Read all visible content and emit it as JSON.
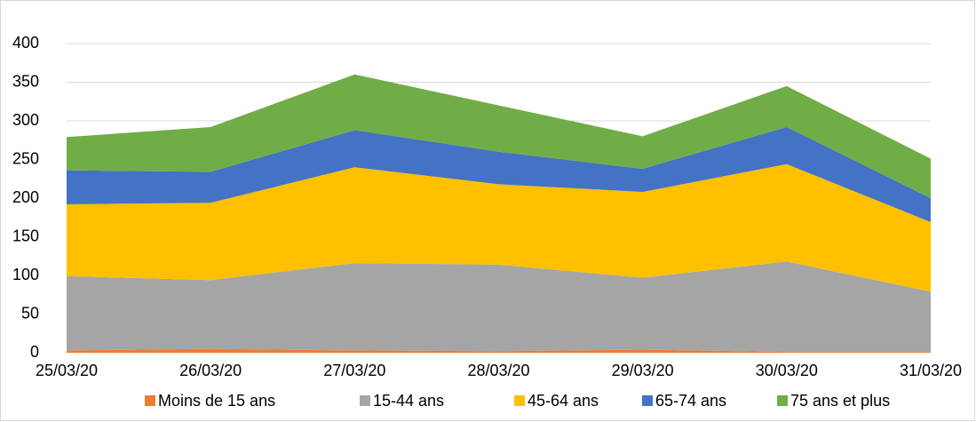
{
  "chart_data": {
    "type": "area",
    "stacked": true,
    "categories": [
      "25/03/20",
      "26/03/20",
      "27/03/20",
      "28/03/20",
      "29/03/20",
      "30/03/20",
      "31/03/20"
    ],
    "series": [
      {
        "name": "Moins de 15 ans",
        "color": "#ed7d31",
        "values": [
          3,
          5,
          3,
          2,
          4,
          1,
          1
        ]
      },
      {
        "name": "15-44 ans",
        "color": "#a5a5a5",
        "values": [
          96,
          89,
          113,
          112,
          93,
          117,
          78
        ]
      },
      {
        "name": "45-64 ans",
        "color": "#ffc000",
        "values": [
          93,
          100,
          124,
          104,
          111,
          126,
          90
        ]
      },
      {
        "name": "65-74 ans",
        "color": "#4472c4",
        "values": [
          44,
          40,
          48,
          42,
          30,
          48,
          31
        ]
      },
      {
        "name": "75 ans et plus",
        "color": "#70ad47",
        "values": [
          43,
          58,
          72,
          60,
          42,
          53,
          51
        ]
      }
    ],
    "ylim": [
      0,
      400
    ],
    "yticks": [
      0,
      50,
      100,
      150,
      200,
      250,
      300,
      350,
      400
    ],
    "grid": true,
    "legend": "bottom"
  }
}
